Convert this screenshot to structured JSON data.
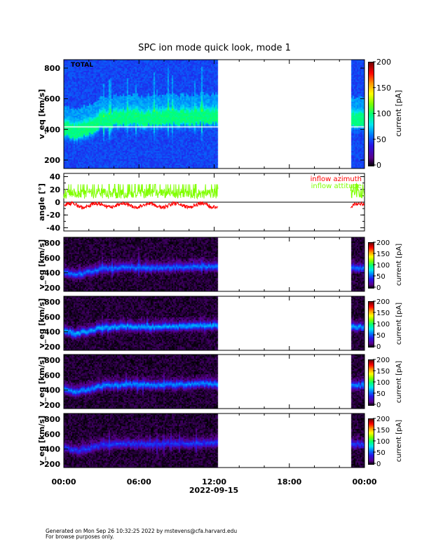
{
  "title": "SPC ion mode quick look, mode 1",
  "chart_data": [
    {
      "type": "heatmap",
      "label": "TOTAL",
      "ylabel": "v_eq [km/s]",
      "yticks": [
        200,
        400,
        600,
        800
      ],
      "ylim": [
        145,
        855
      ],
      "colorbar": {
        "label": "current [pA]",
        "ticks": [
          0,
          50,
          100,
          150,
          200
        ],
        "range": [
          0,
          200
        ]
      },
      "data_hours": [
        [
          0,
          12.3
        ],
        [
          22.9,
          24
        ]
      ],
      "core_speed_by_hour": {
        "hours": [
          0,
          1,
          2,
          3,
          4,
          5,
          6,
          7,
          8,
          9,
          10,
          11,
          12,
          23,
          24
        ],
        "speed": [
          420,
          380,
          420,
          460,
          470,
          480,
          475,
          470,
          480,
          480,
          480,
          490,
          490,
          470,
          470
        ]
      },
      "background": "blue"
    },
    {
      "type": "line",
      "ylabel": "angle [°]",
      "yticks": [
        -40,
        -20,
        0,
        20,
        40
      ],
      "ylim": [
        -45,
        45
      ],
      "legend_position": "top-right",
      "series": [
        {
          "name": "inflow azimuth",
          "color": "#ff0000",
          "mean": -5,
          "spread": 6
        },
        {
          "name": "inflow attitude",
          "color": "#80ff00",
          "mean": 12,
          "spread": 10
        }
      ]
    },
    {
      "type": "heatmap",
      "ylabel": "v_eq [km/s]",
      "yticks": [
        200,
        400,
        600,
        800
      ],
      "ylim": [
        153,
        875
      ],
      "colorbar": {
        "label": "current [pA]",
        "ticks": [
          0,
          50,
          100,
          150,
          200
        ],
        "range": [
          0,
          200
        ]
      },
      "intensity": 0.5
    },
    {
      "type": "heatmap",
      "ylabel": "v_eq [km/s]",
      "yticks": [
        200,
        400,
        600,
        800
      ],
      "ylim": [
        153,
        875
      ],
      "colorbar": {
        "label": "current [pA]",
        "ticks": [
          0,
          50,
          100,
          150,
          200
        ],
        "range": [
          0,
          200
        ]
      },
      "intensity": 0.6
    },
    {
      "type": "heatmap",
      "ylabel": "v_eq [km/s]",
      "yticks": [
        200,
        400,
        600,
        800
      ],
      "ylim": [
        153,
        875
      ],
      "colorbar": {
        "label": "current [pA]",
        "ticks": [
          0,
          50,
          100,
          150,
          200
        ],
        "range": [
          0,
          200
        ]
      },
      "intensity": 0.55
    },
    {
      "type": "heatmap",
      "ylabel": "v_eq [km/s]",
      "yticks": [
        200,
        400,
        600,
        800
      ],
      "ylim": [
        153,
        875
      ],
      "colorbar": {
        "label": "current [pA]",
        "ticks": [
          0,
          50,
          100,
          150,
          200
        ],
        "range": [
          0,
          200
        ]
      },
      "intensity": 0.4
    }
  ],
  "xaxis": {
    "ticks": [
      "00:00",
      "06:00",
      "12:00",
      "18:00",
      "00:00"
    ],
    "date": "2022-09-15",
    "range_hours": [
      0,
      24
    ]
  },
  "footer": {
    "line1": "Generated on Mon Sep 26 10:32:25 2022 by mstevens@cfa.harvard.edu",
    "line2": "For browse purposes only."
  }
}
